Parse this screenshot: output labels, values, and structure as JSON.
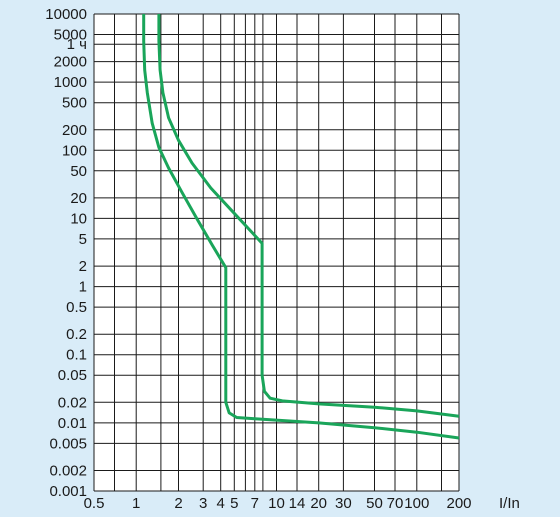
{
  "chart_data": {
    "type": "line",
    "title": "",
    "xlabel": "I/In",
    "ylabel": "",
    "x_scale": "log",
    "y_scale": "log",
    "xlim": [
      0.5,
      200
    ],
    "ylim": [
      0.001,
      10000
    ],
    "grid": true,
    "colors": {
      "background": "#d9ecf8",
      "plot": "#ffffff",
      "grid": "#1a1a1a",
      "curve": "#1aa55a"
    },
    "y_ticks": [
      {
        "value": 10000,
        "label": "10000"
      },
      {
        "value": 5000,
        "label": "5000"
      },
      {
        "value": 3600,
        "label": "1 ч"
      },
      {
        "value": 2000,
        "label": "2000"
      },
      {
        "value": 1000,
        "label": "1000"
      },
      {
        "value": 500,
        "label": "500"
      },
      {
        "value": 200,
        "label": "200"
      },
      {
        "value": 100,
        "label": "100"
      },
      {
        "value": 50,
        "label": "50"
      },
      {
        "value": 20,
        "label": "20"
      },
      {
        "value": 10,
        "label": "10"
      },
      {
        "value": 5,
        "label": "5"
      },
      {
        "value": 2,
        "label": "2"
      },
      {
        "value": 1,
        "label": "1"
      },
      {
        "value": 0.5,
        "label": "0.5"
      },
      {
        "value": 0.2,
        "label": "0.2"
      },
      {
        "value": 0.1,
        "label": "0.1"
      },
      {
        "value": 0.05,
        "label": "0.05"
      },
      {
        "value": 0.02,
        "label": "0.02"
      },
      {
        "value": 0.01,
        "label": "0.01"
      },
      {
        "value": 0.005,
        "label": "0.005"
      },
      {
        "value": 0.002,
        "label": "0.002"
      },
      {
        "value": 0.001,
        "label": "0.001"
      }
    ],
    "x_ticks": [
      {
        "value": 0.5,
        "label": "0.5"
      },
      {
        "value": 1,
        "label": "1"
      },
      {
        "value": 2,
        "label": "2"
      },
      {
        "value": 3,
        "label": "3"
      },
      {
        "value": 4,
        "label": "4"
      },
      {
        "value": 5,
        "label": "5"
      },
      {
        "value": 7,
        "label": "7"
      },
      {
        "value": 10,
        "label": "10"
      },
      {
        "value": 14,
        "label": "14"
      },
      {
        "value": 20,
        "label": "20"
      },
      {
        "value": 30,
        "label": "30"
      },
      {
        "value": 50,
        "label": "50"
      },
      {
        "value": 70,
        "label": "70"
      },
      {
        "value": 100,
        "label": "100"
      },
      {
        "value": 200,
        "label": "200"
      }
    ],
    "x_grid": [
      0.5,
      0.7,
      1,
      1.5,
      2,
      3,
      4,
      5,
      6,
      7,
      8,
      10,
      14,
      20,
      30,
      50,
      70,
      100,
      150,
      200
    ],
    "y_grid": [
      10000,
      5000,
      3600,
      2000,
      1000,
      500,
      200,
      100,
      50,
      20,
      10,
      5,
      2,
      1,
      0.5,
      0.2,
      0.1,
      0.05,
      0.02,
      0.01,
      0.005,
      0.002,
      0.001
    ],
    "series": [
      {
        "points": [
          [
            1.13,
            10000
          ],
          [
            1.13,
            4000
          ],
          [
            1.15,
            1500
          ],
          [
            1.2,
            700
          ],
          [
            1.3,
            250
          ],
          [
            1.45,
            110
          ],
          [
            1.7,
            55
          ],
          [
            2.1,
            25
          ],
          [
            2.7,
            10
          ],
          [
            3.5,
            4
          ],
          [
            4.35,
            1.9
          ],
          [
            4.35,
            0.1
          ],
          [
            4.35,
            0.02
          ],
          [
            4.6,
            0.014
          ],
          [
            5.2,
            0.012
          ],
          [
            7,
            0.0115
          ],
          [
            20,
            0.01
          ],
          [
            50,
            0.0085
          ],
          [
            100,
            0.0073
          ],
          [
            200,
            0.006
          ]
        ]
      },
      {
        "points": [
          [
            1.45,
            10000
          ],
          [
            1.45,
            4000
          ],
          [
            1.48,
            1500
          ],
          [
            1.55,
            700
          ],
          [
            1.7,
            300
          ],
          [
            2,
            140
          ],
          [
            2.5,
            65
          ],
          [
            3.4,
            28
          ],
          [
            4.8,
            13
          ],
          [
            6.8,
            6
          ],
          [
            7.9,
            4.3
          ],
          [
            7.9,
            0.1
          ],
          [
            7.9,
            0.05
          ],
          [
            8.2,
            0.029
          ],
          [
            9,
            0.023
          ],
          [
            11,
            0.021
          ],
          [
            20,
            0.019
          ],
          [
            50,
            0.017
          ],
          [
            100,
            0.015
          ],
          [
            200,
            0.0125
          ]
        ]
      }
    ]
  }
}
